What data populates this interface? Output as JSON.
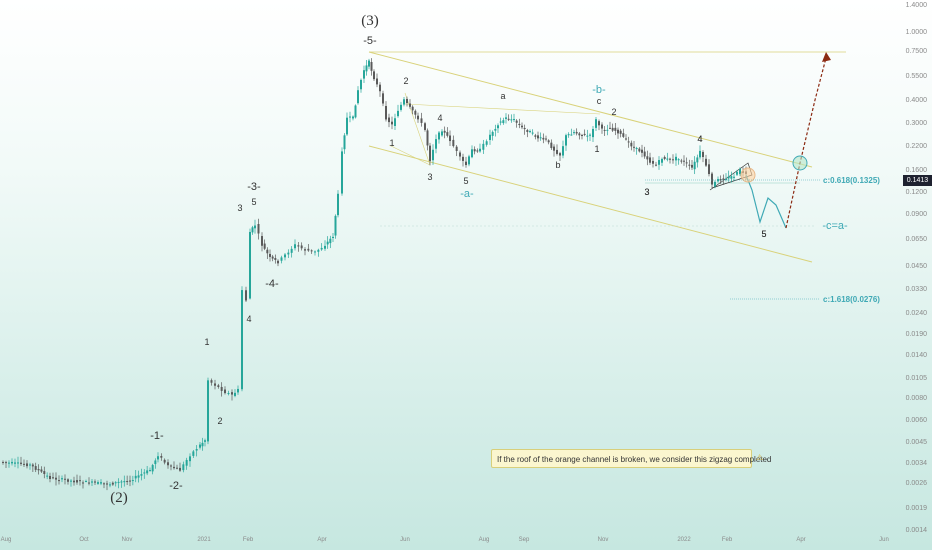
{
  "chart_data": {
    "type": "candlestick",
    "y_scale": "log",
    "y_ticks": [
      "1.4000",
      "1.0000",
      "0.7500",
      "0.5500",
      "0.4000",
      "0.3000",
      "0.2200",
      "0.1600",
      "0.1200",
      "0.0900",
      "0.0650",
      "0.0450",
      "0.0330",
      "0.0240",
      "0.0190",
      "0.0140",
      "0.0105",
      "0.0080",
      "0.0060",
      "0.0045",
      "0.0034",
      "0.0026",
      "0.0019",
      "0.0014"
    ],
    "x_ticks": [
      "Aug",
      "Oct",
      "Nov",
      "2021",
      "Feb",
      "Apr",
      "Jun",
      "Aug",
      "Sep",
      "Nov",
      "2022",
      "Feb",
      "Apr",
      "Jun"
    ],
    "current_price": "0.1413",
    "wave_labels": {
      "major": [
        "(2)",
        "(3)"
      ],
      "minor": [
        "-1-",
        "-2-",
        "-3-",
        "-4-",
        "-5-"
      ],
      "sub": [
        "1",
        "2",
        "3",
        "4",
        "5",
        "3",
        "4",
        "5",
        "1",
        "2",
        "3",
        "4",
        "5",
        "a",
        "b",
        "c",
        "1",
        "2",
        "3",
        "4",
        "5"
      ],
      "corrective": [
        "-a-",
        "-b-",
        "-c=a-"
      ]
    },
    "fib_levels": [
      {
        "label": "c:0.618(0.1325)",
        "value": 0.1325
      },
      {
        "label": "c:1.618(0.0276)",
        "value": 0.0276
      }
    ],
    "note": "If the roof of the orange channel is broken, we consider this zigzag completed"
  },
  "colors": {
    "up": "#26a69a",
    "down": "#5a5a5a",
    "channel": "#d9d27a",
    "projection_up": "#8b2a12",
    "projection_down": "#3fa9b5",
    "fib": "#3fa9b5"
  },
  "icons": {
    "warning": "warning-icon"
  }
}
